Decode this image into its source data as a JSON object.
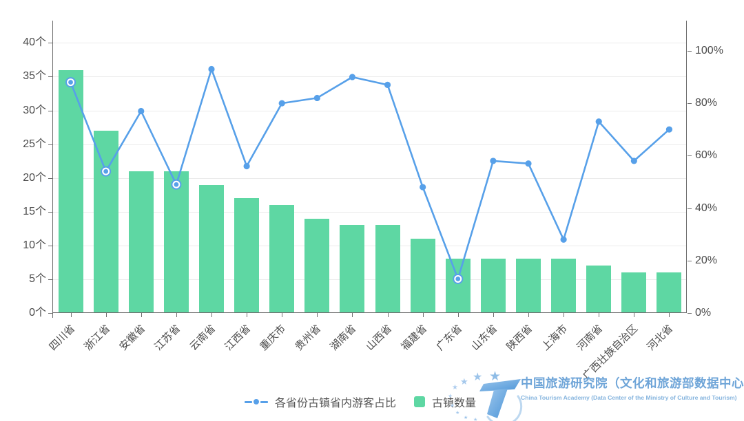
{
  "chart_data": {
    "type": "combo-bar-line",
    "categories": [
      "四川省",
      "浙江省",
      "安徽省",
      "江苏省",
      "云南省",
      "江西省",
      "重庆市",
      "贵州省",
      "湖南省",
      "山西省",
      "福建省",
      "广东省",
      "山东省",
      "陕西省",
      "上海市",
      "河南省",
      "广西壮族自治区",
      "河北省"
    ],
    "series": [
      {
        "name": "古镇数量",
        "type": "bar",
        "yaxis": "left",
        "unit": "个",
        "color": "#5ed7a3",
        "values": [
          36,
          27,
          21,
          21,
          19,
          17,
          16,
          14,
          13,
          13,
          11,
          8,
          8,
          8,
          8,
          7,
          6,
          6
        ]
      },
      {
        "name": "各省份古镇省内游客占比",
        "type": "line",
        "yaxis": "right",
        "unit": "%",
        "color": "#57a0e9",
        "values": [
          88,
          54,
          77,
          49,
          93,
          56,
          80,
          82,
          90,
          87,
          48,
          13,
          58,
          57,
          28,
          73,
          58,
          70
        ],
        "ring_marker_indexes": [
          0,
          1,
          3,
          11
        ]
      }
    ],
    "left_axis": {
      "labels": [
        "0个",
        "5个",
        "10个",
        "15个",
        "20个",
        "25个",
        "30个",
        "35个",
        "40个"
      ],
      "range": [
        0,
        43.3
      ]
    },
    "right_axis": {
      "labels": [
        "0%",
        "20%",
        "40%",
        "60%",
        "80%",
        "100%"
      ],
      "range": [
        0,
        111.5
      ]
    },
    "grid": true,
    "legend_position": "bottom-center"
  },
  "legend": {
    "line_label": "各省份古镇省内游客占比",
    "bar_label": "古镇数量"
  },
  "watermark": {
    "cn": "中国旅游研究院（文化和旅游部数据中心）",
    "en": "China Tourism Academy (Data Center of the Ministry of Culture and Tourism)"
  },
  "colors": {
    "bar": "#5ed7a3",
    "line": "#57a0e9",
    "axis": "#6e6e6e",
    "grid": "#ebebeb",
    "axis_text": "#4b4b4b",
    "legend_text": "#555555",
    "watermark_blue": "#6fa5d8"
  }
}
